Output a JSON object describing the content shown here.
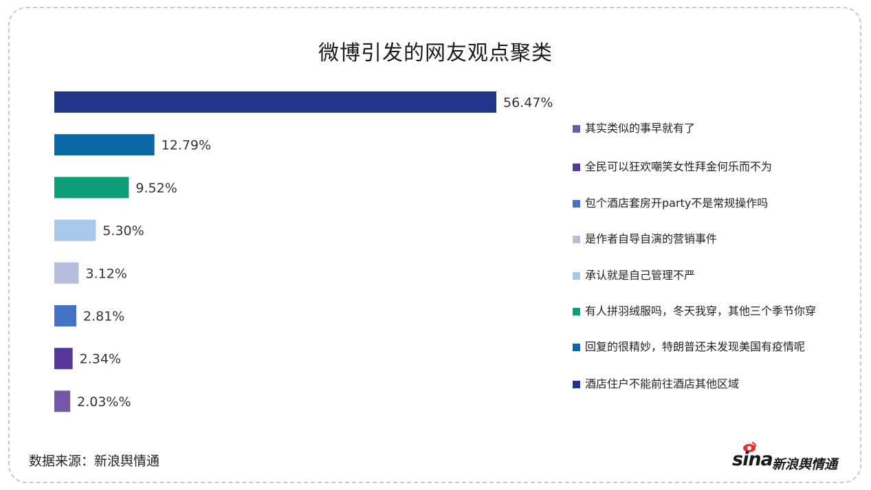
{
  "chart_data": {
    "type": "bar",
    "orientation": "horizontal",
    "title": "微博引发的网友观点聚类",
    "values": [
      56.47,
      12.79,
      9.52,
      5.3,
      3.12,
      2.81,
      2.34,
      2.03
    ],
    "value_labels": [
      "56.47%",
      "12.79%",
      "9.52%",
      "5.30%",
      "3.12%",
      "2.81%",
      "2.34%",
      "2.03%%"
    ],
    "colors": [
      "#1f3588",
      "#0868a8",
      "#0c9e79",
      "#a8c8ea",
      "#b5bfdd",
      "#4472c4",
      "#55389a",
      "#7458a8"
    ],
    "legend": [
      {
        "label": "其实类似的事早就有了",
        "color": "#7458a8"
      },
      {
        "label": "全民可以狂欢嘲笑女性拜金何乐而不为",
        "color": "#55389a"
      },
      {
        "label": "包个酒店套房开party不是常规操作吗",
        "color": "#4472c4"
      },
      {
        "label": "是作者自导自演的营销事件",
        "color": "#b5bfdd"
      },
      {
        "label": "承认就是自己管理不严",
        "color": "#a8c8ea"
      },
      {
        "label": "有人拼羽绒服吗，冬天我穿，其他三个季节你穿",
        "color": "#0c9e79"
      },
      {
        "label": "回复的很精妙，特朗普还未发现美国有疫情呢",
        "color": "#0868a8"
      },
      {
        "label": "酒店住户不能前往酒店其他区域",
        "color": "#1f3588"
      }
    ],
    "legend_position": "right",
    "grid": false
  },
  "source": "数据来源：新浪舆情通",
  "logo": {
    "main": "sina",
    "sub": "新浪舆情通"
  }
}
